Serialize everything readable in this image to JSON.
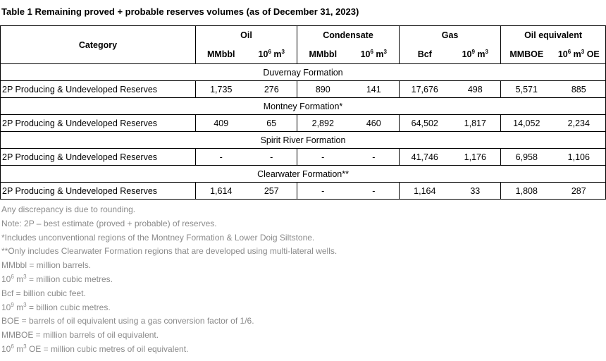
{
  "title": "Table 1 Remaining proved + probable reserves volumes (as of December 31, 2023)",
  "header": {
    "category": "Category",
    "groups": [
      "Oil",
      "Condensate",
      "Gas",
      "Oil equivalent"
    ],
    "units": {
      "oil_mmbbl": "MMbbl",
      "oil_m3_base": "10",
      "oil_m3_exp": "6",
      "oil_m3_suffix": " m",
      "oil_m3_exp2": "3",
      "cond_mmbbl": "MMbbl",
      "cond_m3_base": "10",
      "cond_m3_exp": "6",
      "cond_m3_suffix": " m",
      "cond_m3_exp2": "3",
      "gas_bcf": "Bcf",
      "gas_m3_base": "10",
      "gas_m3_exp": "9",
      "gas_m3_suffix": " m",
      "gas_m3_exp2": "3",
      "oe_mmboe": "MMBOE",
      "oe_m3_base": "10",
      "oe_m3_exp": "6",
      "oe_m3_suffix": " m",
      "oe_m3_exp2": "3",
      "oe_m3_tail": " OE"
    }
  },
  "sections": [
    {
      "name": "Duvernay Formation",
      "category": "2P Producing & Undeveloped Reserves",
      "values": [
        "1,735",
        "276",
        "890",
        "141",
        "17,676",
        "498",
        "5,571",
        "885"
      ]
    },
    {
      "name": "Montney Formation*",
      "category": "2P Producing & Undeveloped Reserves",
      "values": [
        "409",
        "65",
        "2,892",
        "460",
        "64,502",
        "1,817",
        "14,052",
        "2,234"
      ]
    },
    {
      "name": "Spirit River Formation",
      "category": "2P Producing & Undeveloped Reserves",
      "values": [
        "-",
        "-",
        "-",
        "-",
        "41,746",
        "1,176",
        "6,958",
        "1,106"
      ]
    },
    {
      "name": "Clearwater Formation**",
      "category": "2P Producing & Undeveloped Reserves",
      "values": [
        "1,614",
        "257",
        "-",
        "-",
        "1,164",
        "33",
        "1,808",
        "287"
      ]
    }
  ],
  "notes": {
    "rounding": "Any discrepancy is due to rounding.",
    "two_p": "Note: 2P – best estimate (proved + probable) of reserves.",
    "star": "*Includes unconventional regions of the Montney Formation & Lower Doig Siltstone.",
    "double_star": "**Only includes Clearwater Formation regions that are developed using multi-lateral wells.",
    "mmbbl": "MMbbl = million barrels.",
    "m3_base": "10",
    "m3_exp": "6",
    "m3_unit": " m",
    "m3_exp2": "3",
    "m3_text": " = million cubic metres.",
    "bcf": "Bcf = billion cubic feet.",
    "bm3_base": "10",
    "bm3_exp": "9",
    "bm3_unit": " m",
    "bm3_exp2": "3",
    "bm3_text": " = billion cubic metres.",
    "boe": "BOE = barrels of oil equivalent using a gas conversion factor of 1/6.",
    "mmboe": "MMBOE = million barrels of oil equivalent.",
    "oe_base": "10",
    "oe_exp": "6",
    "oe_unit": " m",
    "oe_exp2": "3",
    "oe_text": " OE = million cubic metres of oil equivalent."
  }
}
